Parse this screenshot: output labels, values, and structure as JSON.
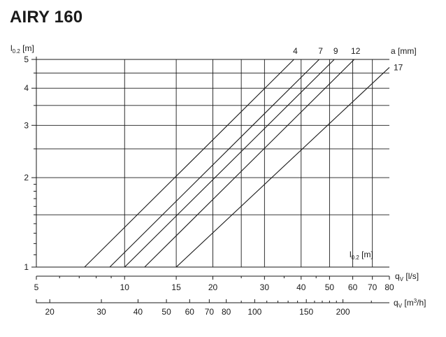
{
  "title": "AIRY 160",
  "chart_data": {
    "type": "line",
    "title": "AIRY 160",
    "x_scale": "log",
    "y_scale": "log",
    "grid": true,
    "xlim": [
      5,
      80
    ],
    "ylim": [
      1,
      5
    ],
    "x_axis_label": {
      "main": "q",
      "sub": "V",
      "unit": " [l/s]"
    },
    "x2_axis_label": {
      "main": "q",
      "sub": "V",
      "unit": " [m",
      "sup": "3",
      "end": "/h]"
    },
    "y_axis_label": {
      "main": "l",
      "sub": "0.2",
      "unit": " [m]"
    },
    "inner_label": {
      "main": "l",
      "sub": "0.2",
      "unit": " [m]"
    },
    "series_header": "a [mm]",
    "x_ticks": [
      5,
      10,
      15,
      20,
      30,
      40,
      50,
      60,
      70,
      80
    ],
    "x_tick_labels": [
      "5",
      "10",
      "15",
      "20",
      "30",
      "40",
      "50",
      "60",
      "70",
      "80"
    ],
    "x_grid": [
      10,
      15,
      20,
      25,
      30,
      40,
      50,
      60,
      70
    ],
    "x2_ticks": [
      20,
      30,
      40,
      50,
      60,
      70,
      80,
      100,
      150,
      200
    ],
    "x2_tick_labels": [
      "20",
      "30",
      "40",
      "50",
      "60",
      "70",
      "80",
      "100",
      "150",
      "200"
    ],
    "x2_minor_ticks": [
      90,
      110,
      120,
      130,
      140,
      160,
      170,
      180,
      190,
      250
    ],
    "y_ticks": [
      1,
      2,
      3,
      4,
      5
    ],
    "y_tick_labels": [
      "1",
      "2",
      "3",
      "4",
      "5"
    ],
    "y_grid": [
      1.5,
      2,
      2.5,
      3,
      3.5,
      4,
      4.5,
      5
    ],
    "y_minor_ticks": [
      1.1,
      1.2,
      1.3,
      1.4,
      1.5,
      1.6,
      1.7,
      1.8,
      1.9,
      2.5,
      3.5,
      4.5
    ],
    "series": [
      {
        "name": "4",
        "points": [
          [
            7.3,
            1.0
          ],
          [
            37.8,
            5.0
          ]
        ]
      },
      {
        "name": "7",
        "points": [
          [
            8.9,
            1.0
          ],
          [
            46.1,
            5.0
          ]
        ]
      },
      {
        "name": "9",
        "points": [
          [
            10.0,
            1.0
          ],
          [
            51.9,
            5.0
          ]
        ]
      },
      {
        "name": "12",
        "points": [
          [
            11.7,
            1.0
          ],
          [
            60.7,
            5.0
          ]
        ]
      },
      {
        "name": "17",
        "points": [
          [
            15.0,
            1.0
          ],
          [
            80.0,
            4.7
          ]
        ]
      }
    ]
  }
}
